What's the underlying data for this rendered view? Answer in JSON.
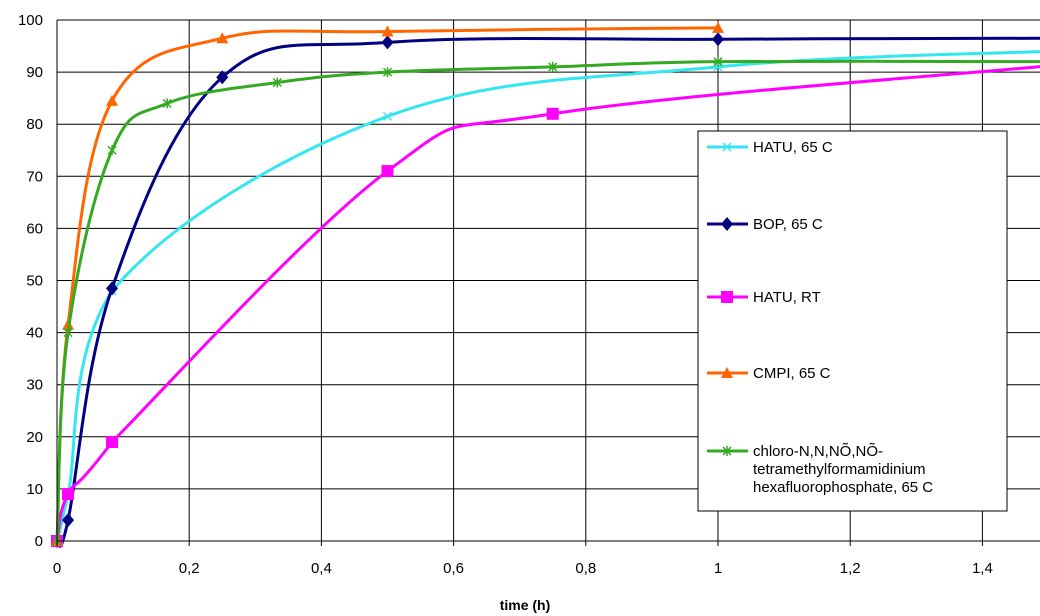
{
  "chart_data": {
    "type": "line",
    "title": "",
    "xlabel": "time (h)",
    "ylabel": "",
    "xlim": [
      0,
      1.5
    ],
    "ylim": [
      0,
      100
    ],
    "x_ticks": [
      "0",
      "0,2",
      "0,4",
      "0,6",
      "0,8",
      "1",
      "1,2",
      "1,4"
    ],
    "y_ticks": [
      "0",
      "10",
      "20",
      "30",
      "40",
      "50",
      "60",
      "70",
      "80",
      "90",
      "100"
    ],
    "grid": true,
    "legend_position": "right",
    "series": [
      {
        "name": "HATU, 65   C",
        "color": "#33e6f0",
        "marker": "x",
        "x": [
          0,
          0.0167,
          0.0833,
          0.5,
          1.0
        ],
        "y": [
          0,
          9,
          48,
          81.5,
          91
        ],
        "line_extends_to": [
          1.5,
          94
        ]
      },
      {
        "name": "BOP, 65   C",
        "color": "#000080",
        "marker": "diamond",
        "x": [
          0,
          0.0167,
          0.0833,
          0.25,
          0.5,
          1.0
        ],
        "y": [
          0,
          4,
          48.5,
          89,
          95.7,
          96.3
        ],
        "line_extends_to": [
          1.5,
          96.5
        ]
      },
      {
        "name": "HATU, RT",
        "color": "#ff00ff",
        "marker": "square",
        "x": [
          0,
          0.0167,
          0.0833,
          0.5,
          0.75
        ],
        "y": [
          0,
          9,
          19,
          71,
          82
        ],
        "line_extends_to": [
          1.5,
          91.2
        ]
      },
      {
        "name": "CMPI, 65   C",
        "color": "#ff6600",
        "marker": "triangle",
        "x": [
          0,
          0.0167,
          0.0833,
          0.25,
          0.5,
          1.0
        ],
        "y": [
          0,
          41.5,
          84.5,
          96.5,
          97.8,
          98.5
        ]
      },
      {
        "name": "chloro-N,N,NÕ,NÕ-\ntetramethylformamidinium\nhexafluorophosphate, 65   C",
        "color": "#33aa22",
        "marker": "star",
        "x": [
          0,
          0.0167,
          0.0833,
          0.1667,
          0.3333,
          0.5,
          0.75,
          1.0
        ],
        "y": [
          0,
          40,
          75,
          84,
          88,
          90,
          91,
          92
        ],
        "line_extends_to": [
          1.5,
          92
        ]
      }
    ]
  }
}
